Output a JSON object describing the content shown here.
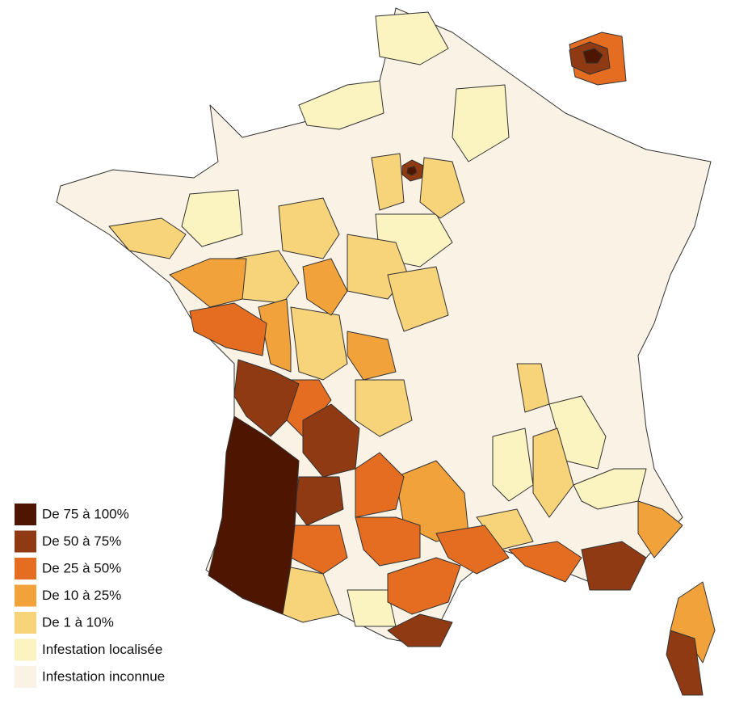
{
  "legend": {
    "items": [
      {
        "label": "De 75 à 100%",
        "color": "#4e1600"
      },
      {
        "label": "De 50 à 75%",
        "color": "#8f3a12"
      },
      {
        "label": "De 25 à 50%",
        "color": "#e56d22"
      },
      {
        "label": "De 10 à 25%",
        "color": "#f2a23a"
      },
      {
        "label": "De 1 à 10%",
        "color": "#f7d37a"
      },
      {
        "label": "Infestation localisée",
        "color": "#fbf3c0"
      },
      {
        "label": "Infestation inconnue",
        "color": "#faf2e4"
      }
    ]
  }
}
